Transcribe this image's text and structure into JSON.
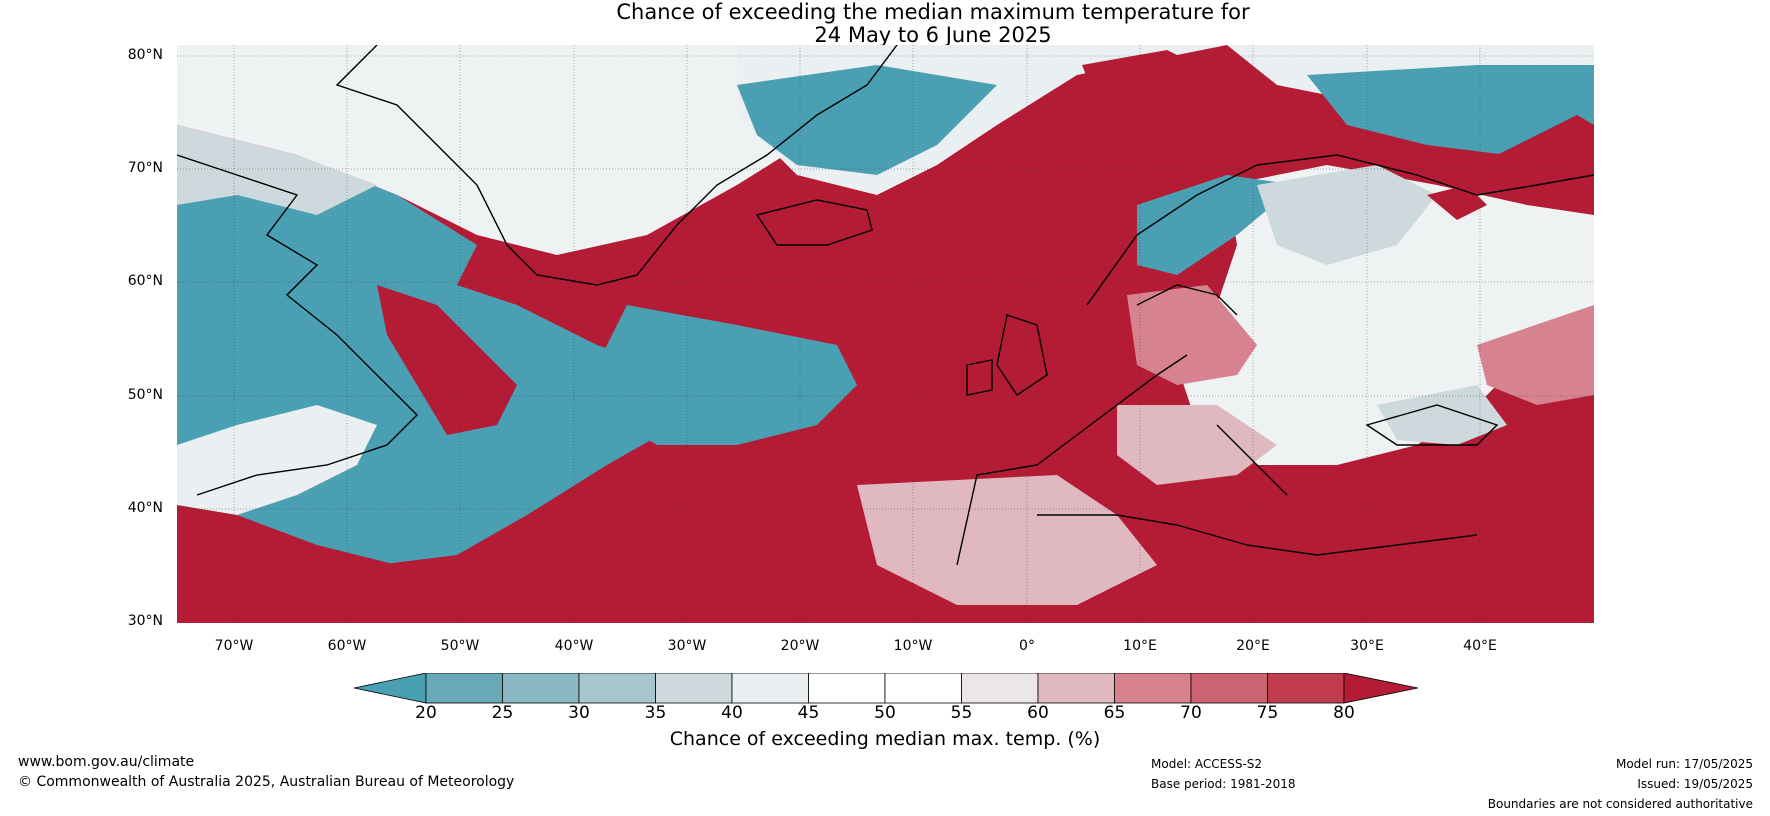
{
  "title": {
    "line1": "Chance of exceeding the median maximum temperature for",
    "line2": "24 May to 6 June 2025"
  },
  "map": {
    "lat_labels": [
      "80°N",
      "70°N",
      "60°N",
      "50°N",
      "40°N",
      "30°N"
    ],
    "lon_labels": [
      "70°W",
      "60°W",
      "50°W",
      "40°W",
      "30°W",
      "20°W",
      "10°W",
      "0°",
      "10°E",
      "20°E",
      "30°E",
      "40°E"
    ],
    "ocean_color": "#b41c35"
  },
  "colorbar": {
    "ticks": [
      "20",
      "25",
      "30",
      "35",
      "40",
      "45",
      "50",
      "55",
      "60",
      "65",
      "70",
      "75",
      "80"
    ],
    "colors": [
      "#4a9fb3",
      "#6aaab8",
      "#89b8c4",
      "#a9c6cd",
      "#cdd9dc",
      "#eaf0f1",
      "#ffffff",
      "#ffffff",
      "#ebe6e7",
      "#e0b8bf",
      "#d7838f",
      "#cc6372",
      "#c13c4f",
      "#b41c35"
    ],
    "label": "Chance of exceeding median max. temp. (%)"
  },
  "footer": {
    "website": "www.bom.gov.au/climate",
    "copyright": "© Commonwealth of Australia 2025, Australian Bureau of Meteorology",
    "model": "Model: ACCESS-S2",
    "base_period": "Base period: 1981-2018",
    "model_run": "Model run: 17/05/2025",
    "issued": "Issued: 19/05/2025",
    "disclaimer": "Boundaries are not considered authoritative"
  }
}
